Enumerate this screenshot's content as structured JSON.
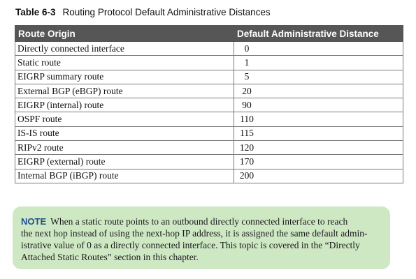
{
  "caption": {
    "number": "Table 6-3",
    "title": "Routing Protocol Default Administrative Distances"
  },
  "table": {
    "headers": [
      "Route Origin",
      "Default Administrative Distance"
    ],
    "rows": [
      [
        "Directly connected interface",
        "0"
      ],
      [
        "Static route",
        "1"
      ],
      [
        "EIGRP summary route",
        "5"
      ],
      [
        "External BGP (eBGP) route",
        "20"
      ],
      [
        "EIGRP (internal) route",
        "90"
      ],
      [
        "OSPF route",
        "110"
      ],
      [
        "IS-IS route",
        "115"
      ],
      [
        "RIPv2 route",
        "120"
      ],
      [
        "EIGRP (external) route",
        "170"
      ],
      [
        "Internal BGP (iBGP) route",
        "200"
      ]
    ]
  },
  "note": {
    "label": "NOTE",
    "lines": [
      "When a static route points to an outbound directly connected interface to reach",
      "the next hop instead of using the next-hop IP address, it is assigned the same default admin-",
      "istrative value of 0 as a directly connected interface. This topic is covered in the “Directly",
      "Attached Static Routes” section in this chapter."
    ]
  },
  "colors": {
    "header_bg": "#565656",
    "note_bg": "#cfe8c4",
    "note_label": "#1c4f8c"
  }
}
